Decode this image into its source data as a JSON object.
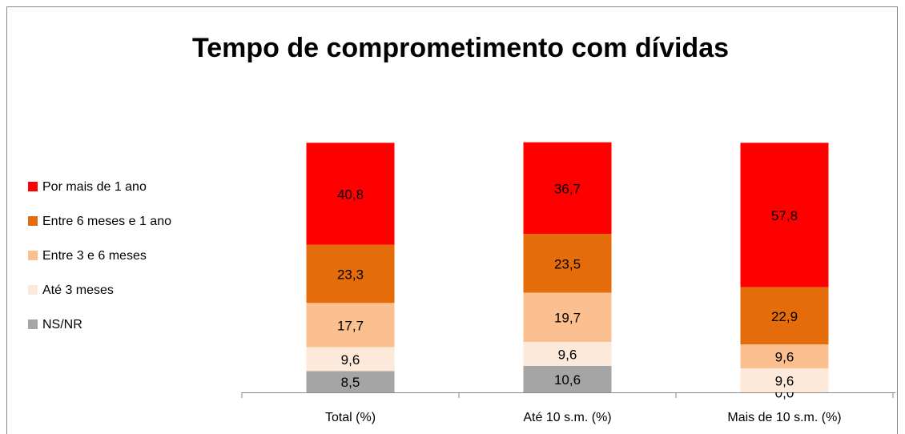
{
  "chart_data": {
    "type": "stacked_bar",
    "title": "Tempo de comprometimento com dívidas",
    "categories": [
      "Total (%)",
      "Até 10 s.m. (%)",
      "Mais de 10 s.m. (%)"
    ],
    "ylim": [
      0,
      100
    ],
    "legend": "left",
    "series": [
      {
        "name": "NS/NR",
        "color": "#a5a5a5",
        "values": [
          8.5,
          10.6,
          0.0
        ],
        "value_labels": [
          "8,5",
          "10,6",
          "0,0"
        ]
      },
      {
        "name": "Até 3 meses",
        "color": "#fde9d9",
        "values": [
          9.6,
          9.6,
          9.6
        ],
        "value_labels": [
          "9,6",
          "9,6",
          "9,6"
        ]
      },
      {
        "name": "Entre 3 e 6 meses",
        "color": "#fac090",
        "values": [
          17.7,
          19.7,
          9.6
        ],
        "value_labels": [
          "17,7",
          "19,7",
          "9,6"
        ]
      },
      {
        "name": "Entre 6 meses e 1 ano",
        "color": "#e46c0a",
        "values": [
          23.3,
          23.5,
          22.9
        ],
        "value_labels": [
          "23,3",
          "23,5",
          "22,9"
        ]
      },
      {
        "name": "Por mais de 1 ano",
        "color": "#ff0000",
        "values": [
          40.8,
          36.7,
          57.8
        ],
        "value_labels": [
          "40,8",
          "36,7",
          "57,8"
        ]
      }
    ]
  }
}
